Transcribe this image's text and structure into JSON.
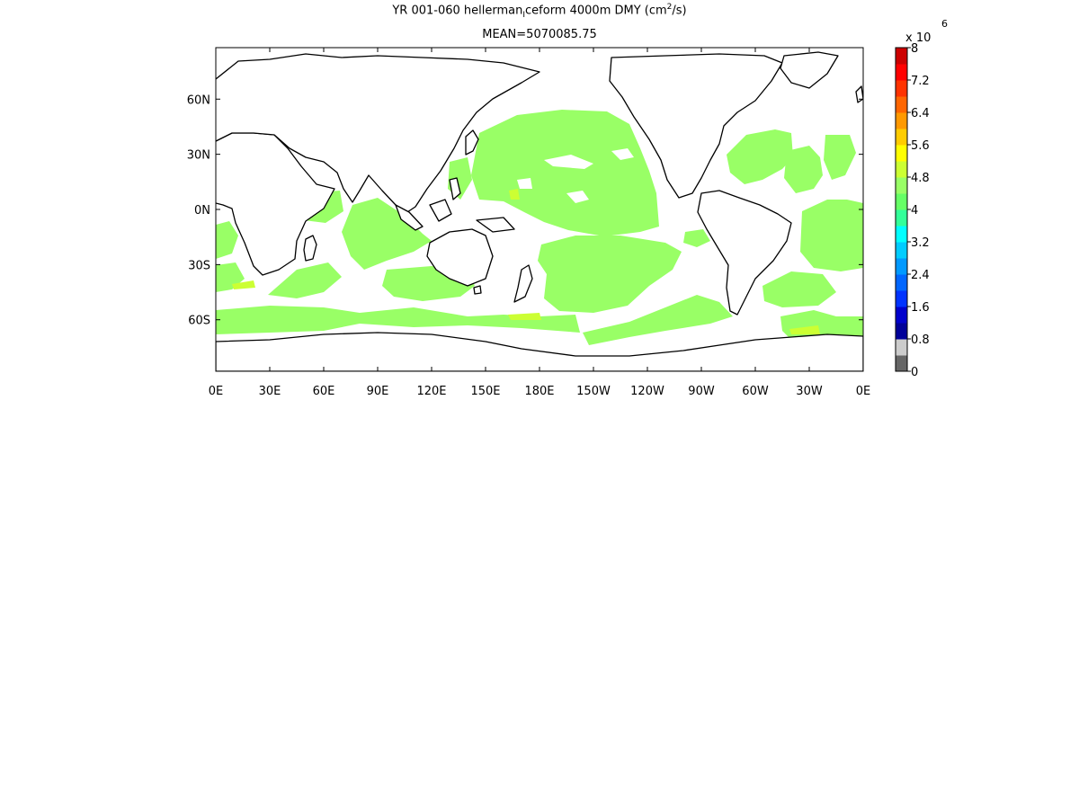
{
  "title": {
    "prefix": "YR 001-060 hellerman",
    "subscript": "I",
    "suffix": "ceform 4000m DMY (cm",
    "unit_sup": "2",
    "unit_end": "/s)"
  },
  "mean_label": "MEAN=5070085.75",
  "map": {
    "x_ticks": [
      "0E",
      "30E",
      "60E",
      "90E",
      "120E",
      "150E",
      "180E",
      "150W",
      "120W",
      "90W",
      "60W",
      "30W",
      "0E"
    ],
    "x_tick_lon": [
      0,
      30,
      60,
      90,
      120,
      150,
      180,
      210,
      240,
      270,
      300,
      330,
      360
    ],
    "y_ticks": [
      "60N",
      "30N",
      "0N",
      "30S",
      "60S"
    ],
    "y_tick_lat": [
      60,
      30,
      0,
      -30,
      -60
    ],
    "lon_range": [
      0,
      360
    ],
    "lat_range": [
      -88,
      88
    ],
    "field_color": "#99ff66",
    "highlight_color": "#ccff33",
    "coast_color": "#000000"
  },
  "colorbar": {
    "multiplier_base": "x 10",
    "multiplier_exp": "6",
    "labels": [
      "8",
      "7.2",
      "6.4",
      "5.6",
      "4.8",
      "4",
      "3.2",
      "2.4",
      "1.6",
      "0.8",
      "0"
    ],
    "label_values": [
      8,
      7.2,
      6.4,
      5.6,
      4.8,
      4,
      3.2,
      2.4,
      1.6,
      0.8,
      0
    ],
    "range": [
      0,
      8
    ],
    "colors": [
      "#666666",
      "#cccccc",
      "#000099",
      "#0000cc",
      "#0033ff",
      "#0066ff",
      "#0099ff",
      "#00ccff",
      "#00ffff",
      "#33ff99",
      "#66ff66",
      "#99ff66",
      "#ccff33",
      "#ffff00",
      "#ffcc00",
      "#ff9900",
      "#ff6600",
      "#ff3300",
      "#ff0000",
      "#cc0000"
    ]
  }
}
